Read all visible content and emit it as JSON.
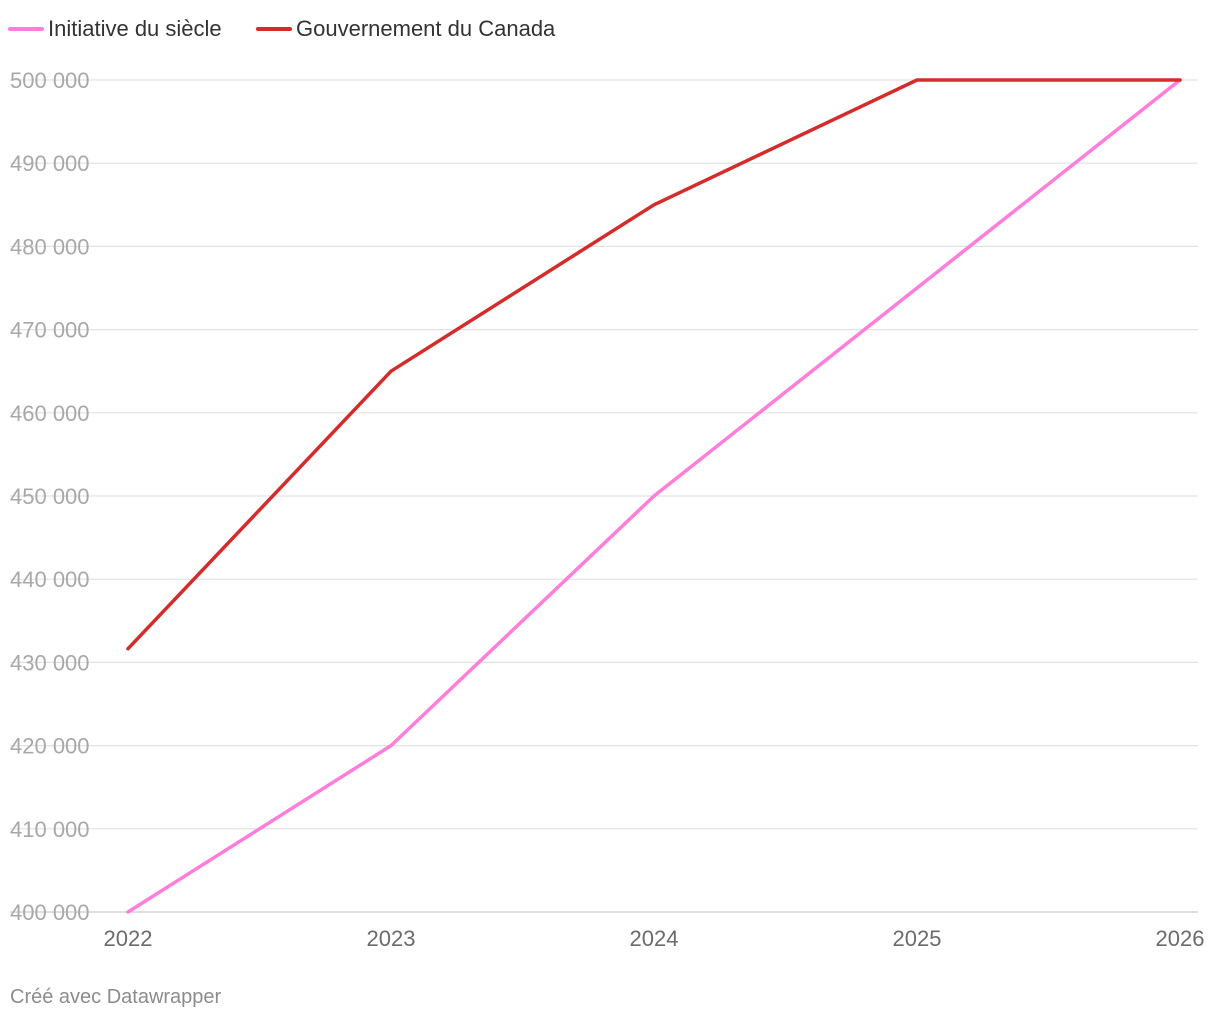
{
  "chart_data": {
    "type": "line",
    "title": "",
    "xlabel": "",
    "ylabel": "",
    "categories": [
      "2022",
      "2023",
      "2024",
      "2025",
      "2026"
    ],
    "x": [
      2022,
      2023,
      2024,
      2025,
      2026
    ],
    "ylim": [
      400000,
      500000
    ],
    "y_ticks": [
      {
        "value": 400000,
        "label": "400 000"
      },
      {
        "value": 410000,
        "label": "410 000"
      },
      {
        "value": 420000,
        "label": "420 000"
      },
      {
        "value": 430000,
        "label": "430 000"
      },
      {
        "value": 440000,
        "label": "440 000"
      },
      {
        "value": 450000,
        "label": "450 000"
      },
      {
        "value": 460000,
        "label": "460 000"
      },
      {
        "value": 470000,
        "label": "470 000"
      },
      {
        "value": 480000,
        "label": "480 000"
      },
      {
        "value": 490000,
        "label": "490 000"
      },
      {
        "value": 500000,
        "label": "500 000"
      }
    ],
    "grid": true,
    "legend_position": "top-left",
    "series": [
      {
        "name": "Initiative du siècle",
        "color": "#ff7ddb",
        "values": [
          400000,
          420000,
          450000,
          475000,
          500000
        ]
      },
      {
        "name": "Gouvernement du Canada",
        "color": "#d52b2b",
        "values": [
          431645,
          465000,
          485000,
          500000,
          500000
        ]
      }
    ]
  },
  "footer": {
    "credit": "Créé avec Datawrapper"
  },
  "colors": {
    "gridline": "#e2e2e2",
    "axis": "#cccccc"
  }
}
